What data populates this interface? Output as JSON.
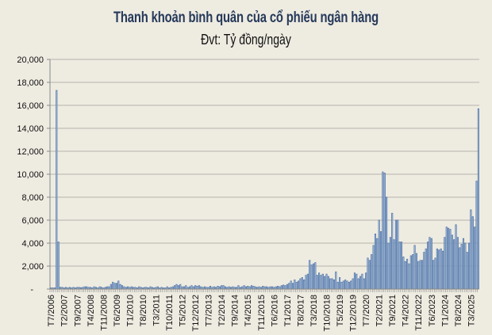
{
  "chart_data": {
    "type": "bar",
    "title": "Thanh khoản bình quân của cổ phiếu ngân hàng",
    "subtitle": "Đvt: Tỷ đồng/ngày",
    "xlabel": "",
    "ylabel": "",
    "ylim": [
      0,
      20000
    ],
    "yticks": [
      0,
      2000,
      4000,
      6000,
      8000,
      10000,
      12000,
      14000,
      16000,
      18000,
      20000
    ],
    "ytick_labels": [
      "-",
      "2,000",
      "4,000",
      "6,000",
      "8,000",
      "10,000",
      "12,000",
      "14,000",
      "16,000",
      "18,000",
      "20,000"
    ],
    "grid": true,
    "start_month": "T7/2006",
    "xtick_labels": [
      "T7/2006",
      "T2/2007",
      "T9/2007",
      "T4/2008",
      "T11/2008",
      "T6/2009",
      "T1/2010",
      "T8/2010",
      "T3/2011",
      "T10/2011",
      "T5/2012",
      "T12/2012",
      "T7/2013",
      "T2/2014",
      "T9/2014",
      "T4/2015",
      "T11/2015",
      "T6/2016",
      "T1/2017",
      "T8/2017",
      "T3/2018",
      "T10/2018",
      "T5/2019",
      "T12/2019",
      "T7/2020",
      "T2/2021",
      "T9/2021",
      "T4/2022",
      "T11/2022",
      "T6/2023",
      "T1/2024",
      "T8/2024",
      "T3/2025"
    ],
    "values": [
      100,
      100,
      100,
      17300,
      4100,
      150,
      150,
      100,
      150,
      100,
      150,
      100,
      150,
      100,
      150,
      150,
      120,
      150,
      200,
      200,
      150,
      150,
      100,
      200,
      150,
      100,
      200,
      150,
      100,
      150,
      200,
      200,
      400,
      600,
      500,
      500,
      700,
      400,
      300,
      200,
      150,
      200,
      150,
      200,
      150,
      150,
      100,
      200,
      150,
      100,
      150,
      150,
      100,
      200,
      150,
      100,
      150,
      200,
      100,
      150,
      100,
      100,
      200,
      100,
      150,
      200,
      300,
      400,
      300,
      400,
      200,
      200,
      300,
      150,
      200,
      300,
      200,
      300,
      250,
      300,
      200,
      150,
      200,
      150,
      150,
      250,
      150,
      200,
      150,
      250,
      200,
      300,
      300,
      200,
      150,
      200,
      150,
      200,
      150,
      150,
      300,
      150,
      200,
      300,
      200,
      250,
      200,
      300,
      250,
      200,
      150,
      200,
      150,
      250,
      200,
      200,
      150,
      200,
      200,
      150,
      200,
      250,
      200,
      300,
      350,
      300,
      400,
      500,
      700,
      500,
      800,
      600,
      700,
      900,
      1000,
      800,
      1200,
      1300,
      2500,
      2100,
      2200,
      2300,
      1200,
      1400,
      1200,
      1300,
      1100,
      1300,
      1100,
      900,
      900,
      800,
      1500,
      600,
      1000,
      600,
      700,
      800,
      700,
      600,
      700,
      900,
      1400,
      1300,
      900,
      1100,
      1300,
      900,
      1400,
      2700,
      2500,
      3000,
      3800,
      4800,
      4400,
      6000,
      5000,
      10200,
      10100,
      8000,
      4000,
      4500,
      6600,
      4300,
      6000,
      6000,
      4100,
      4100,
      2800,
      2400,
      2600,
      2200,
      2900,
      3000,
      3800,
      3100,
      2400,
      2500,
      2500,
      3200,
      3500,
      4100,
      4500,
      4400,
      2500,
      2700,
      3500,
      3400,
      3500,
      3300,
      4500,
      5400,
      5300,
      5200,
      4700,
      4300,
      5600,
      4500,
      3600,
      3900,
      4400,
      4000,
      3200,
      4000,
      6900,
      6300,
      5400,
      9400,
      15700
    ],
    "colors": {
      "bar_fill": "#d5e5f4",
      "bar_stroke": "#4f74a8",
      "grid": "#b5b3ad",
      "title": "#25395a",
      "background": "#eeebe1"
    }
  }
}
